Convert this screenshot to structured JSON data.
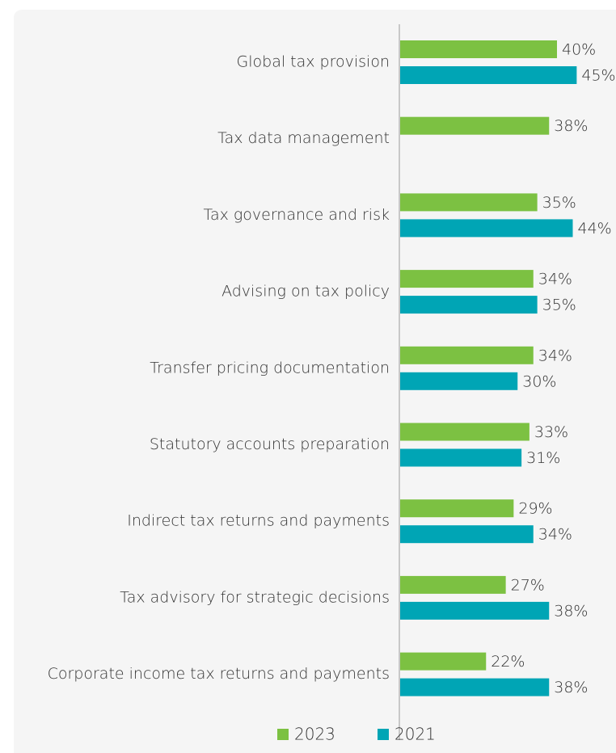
{
  "chart_data": {
    "type": "bar",
    "orientation": "horizontal",
    "categories": [
      "Global tax provision",
      "Tax data management",
      "Tax governance and risk",
      "Advising on tax policy",
      "Transfer pricing documentation",
      "Statutory accounts preparation",
      "Indirect tax returns and payments",
      "Tax advisory for strategic decisions",
      "Corporate income tax returns and payments"
    ],
    "series": [
      {
        "name": "2023",
        "color": "#7cc142",
        "values": [
          40,
          38,
          35,
          34,
          34,
          33,
          29,
          27,
          22
        ],
        "value_labels": [
          "40%",
          "38%",
          "35%",
          "34%",
          "34%",
          "33%",
          "29%",
          "27%",
          "22%"
        ]
      },
      {
        "name": "2021",
        "color": "#00a5b5",
        "values": [
          45,
          null,
          44,
          35,
          30,
          31,
          34,
          38,
          38
        ],
        "value_labels": [
          "45%",
          null,
          "44%",
          "35%",
          "30%",
          "31%",
          "34%",
          "38%",
          "38%"
        ]
      }
    ],
    "legend": "bottom"
  }
}
